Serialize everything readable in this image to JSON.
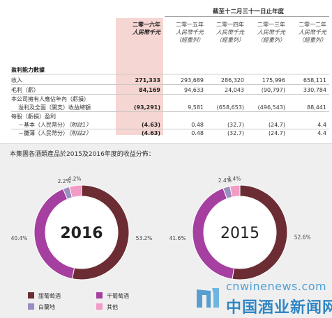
{
  "table": {
    "period_header": "截至十二月三十一日止年度",
    "columns": [
      {
        "year": "二零一六年",
        "unit": "人民幣千元",
        "note": ""
      },
      {
        "year": "二零一五年",
        "unit": "人民幣千元",
        "note": "（經重列）"
      },
      {
        "year": "二零一四年",
        "unit": "人民幣千元",
        "note": "（經重列）"
      },
      {
        "year": "二零一三年",
        "unit": "人民幣千元",
        "note": "（經重列）"
      },
      {
        "year": "二零一二年",
        "unit": "人民幣千元",
        "note": "（經重列）"
      }
    ],
    "section_title": "盈利能力數據",
    "rows": [
      {
        "label": "收入",
        "values": [
          "271,333",
          "293,689",
          "286,320",
          "175,996",
          "658,111"
        ]
      },
      {
        "label": "毛利（虧）",
        "values": [
          "84,169",
          "94,633",
          "24,043",
          "(90,797)",
          "330,784"
        ]
      },
      {
        "label": "本公司擁有人應佔年內（虧損）",
        "values": [
          "",
          "",
          "",
          "",
          ""
        ]
      },
      {
        "label": "溢利及全面（開支）收益總額",
        "values": [
          "(93,291)",
          "9,581",
          "(658,653)",
          "(496,543)",
          "88,441"
        ]
      },
      {
        "label": "每股（虧損）盈利",
        "values": [
          "",
          "",
          "",
          "",
          ""
        ]
      },
      {
        "label": "－基本（人民幣分）",
        "note": "（附註1）",
        "values": [
          "(4.63)",
          "0.48",
          "(32.7)",
          "(24.7)",
          "4.4"
        ]
      },
      {
        "label": "－攤薄（人民幣分）",
        "note": "（附註2）",
        "values": [
          "(4.63)",
          "0.48",
          "(32.7)",
          "(24.7)",
          "4.4"
        ]
      }
    ]
  },
  "chart_caption": "本集團各酒類產品於2015及2016年度的收益分佈：",
  "chart_data": [
    {
      "type": "pie",
      "title": "2016",
      "categories": [
        "甜葡萄酒",
        "干葡萄酒",
        "白蘭地",
        "其他"
      ],
      "values": [
        53.2,
        40.4,
        2.2,
        4.2
      ],
      "labels": [
        "53.2%",
        "40.4%",
        "2.2%",
        "4.2%"
      ]
    },
    {
      "type": "pie",
      "title": "2015",
      "categories": [
        "甜葡萄酒",
        "干葡萄酒",
        "白蘭地",
        "其他"
      ],
      "values": [
        52.6,
        41.6,
        2.4,
        3.4
      ],
      "labels": [
        "52.6%",
        "41.6%",
        "2.4%",
        "3.4%"
      ]
    }
  ],
  "legend": [
    {
      "label": "甜葡萄酒",
      "color": "#6b2d33"
    },
    {
      "label": "干葡萄酒",
      "color": "#a53fa0"
    },
    {
      "label": "白蘭地",
      "color": "#9b8dbf"
    },
    {
      "label": "其他",
      "color": "#f29bc4"
    }
  ],
  "colors": {
    "highlight_column": "#f6d6d2",
    "panel_bg": "#efefef"
  },
  "watermark": {
    "url": "cnwinenews.com",
    "name": "中国酒业新闻网"
  }
}
